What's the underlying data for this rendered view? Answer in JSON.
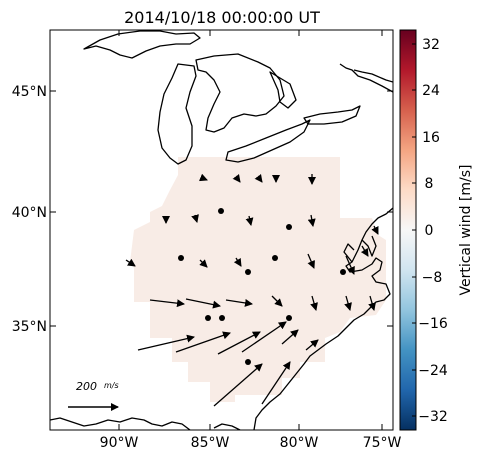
{
  "map": {
    "title": "2014/10/18 00:00:00 UT",
    "x_ticks": [
      "90°W",
      "85°W",
      "80°W",
      "75°W"
    ],
    "y_ticks": [
      "45°N",
      "40°N",
      "35°N"
    ],
    "scale_label": "200",
    "scale_units": "m/s",
    "field_color": "#f8ece6",
    "coast_color": "#000000"
  },
  "colorbar": {
    "label": "Vertical wind [m/s]",
    "ticks": [
      "32",
      "24",
      "16",
      "8",
      "0",
      "−8",
      "−16",
      "−24",
      "−32"
    ],
    "colors": [
      "#67001f",
      "#b2182b",
      "#d6604d",
      "#f4a582",
      "#fddbc7",
      "#f7f7f7",
      "#d1e5f0",
      "#92c5de",
      "#4393c3",
      "#2166ac",
      "#053061"
    ]
  }
}
